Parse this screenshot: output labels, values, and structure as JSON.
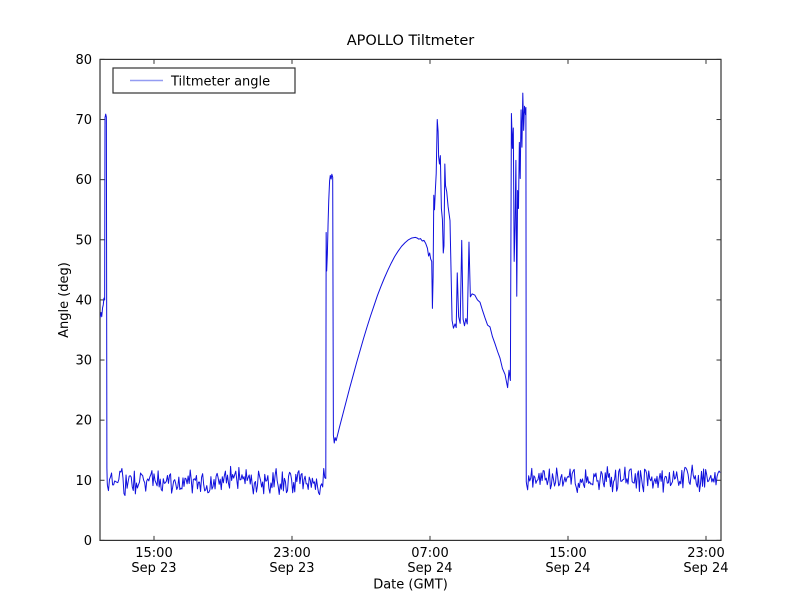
{
  "chart_data": {
    "type": "line",
    "title": "APOLLO Tiltmeter",
    "xlabel": "Date (GMT)",
    "ylabel": "Angle (deg)",
    "grid": false,
    "legend_position": "upper left",
    "ylim": [
      0,
      80
    ],
    "y_ticks": [
      0,
      10,
      20,
      30,
      40,
      50,
      60,
      70,
      80
    ],
    "x_unit": "hours since Sep 23 00:00 GMT",
    "xlim": [
      11.87,
      47.87
    ],
    "x_ticks": [
      {
        "hour": 15,
        "time": "15:00",
        "date": "Sep 23"
      },
      {
        "hour": 23,
        "time": "23:00",
        "date": "Sep 23"
      },
      {
        "hour": 31,
        "time": "07:00",
        "date": "Sep 24"
      },
      {
        "hour": 39,
        "time": "15:00",
        "date": "Sep 24"
      },
      {
        "hour": 47,
        "time": "23:00",
        "date": "Sep 24"
      }
    ],
    "style": {
      "line_color": "#1010dd",
      "legend_swatch_color": "#949cf2",
      "axis_color": "#333333",
      "background": "#ffffff"
    },
    "series": [
      {
        "name": "Tiltmeter angle",
        "color": "#1010dd",
        "segments": [
          {
            "type": "points",
            "label": "initial-spike",
            "pts": [
              [
                11.87,
                37.0
              ],
              [
                11.93,
                37.9
              ],
              [
                11.97,
                37.2
              ],
              [
                12.02,
                38.7
              ],
              [
                12.06,
                39.2
              ],
              [
                12.1,
                40.3
              ],
              [
                12.14,
                40.0
              ],
              [
                12.16,
                70.3
              ],
              [
                12.2,
                70.9
              ],
              [
                12.24,
                70.4
              ],
              [
                12.27,
                12.0
              ],
              [
                12.29,
                9.6
              ]
            ]
          },
          {
            "type": "noise",
            "label": "baseline-1",
            "t0": 12.3,
            "t1": 24.95,
            "dt": 0.06,
            "mean": 9.9,
            "amp": 2.6,
            "seed": 7
          },
          {
            "type": "points",
            "label": "main-event",
            "pts": [
              [
                24.96,
                10.3
              ],
              [
                24.98,
                51.2
              ],
              [
                25.01,
                44.8
              ],
              [
                25.05,
                47.6
              ],
              [
                25.09,
                52.5
              ],
              [
                25.13,
                56.5
              ],
              [
                25.18,
                59.8
              ],
              [
                25.22,
                60.7
              ],
              [
                25.27,
                60.1
              ],
              [
                25.31,
                60.9
              ],
              [
                25.36,
                60.4
              ],
              [
                25.4,
                17.5
              ],
              [
                25.45,
                16.2
              ],
              [
                25.5,
                17.1
              ],
              [
                25.56,
                16.6
              ],
              [
                25.75,
                18.8
              ],
              [
                25.95,
                21.0
              ],
              [
                26.15,
                23.2
              ],
              [
                26.35,
                25.4
              ],
              [
                26.55,
                27.5
              ],
              [
                26.75,
                29.6
              ],
              [
                26.95,
                31.6
              ],
              [
                27.15,
                33.6
              ],
              [
                27.35,
                35.5
              ],
              [
                27.55,
                37.3
              ],
              [
                27.75,
                39.0
              ],
              [
                27.95,
                40.7
              ],
              [
                28.15,
                42.2
              ],
              [
                28.35,
                43.6
              ],
              [
                28.55,
                44.9
              ],
              [
                28.75,
                46.1
              ],
              [
                28.95,
                47.2
              ],
              [
                29.15,
                48.1
              ],
              [
                29.35,
                48.9
              ],
              [
                29.55,
                49.5
              ],
              [
                29.75,
                50.0
              ],
              [
                29.95,
                50.3
              ],
              [
                30.15,
                50.4
              ],
              [
                30.25,
                50.3
              ],
              [
                30.35,
                50.1
              ],
              [
                30.45,
                50.2
              ],
              [
                30.55,
                49.8
              ],
              [
                30.65,
                49.9
              ],
              [
                30.75,
                49.4
              ],
              [
                30.85,
                48.6
              ],
              [
                30.92,
                47.3
              ],
              [
                30.98,
                47.8
              ],
              [
                31.04,
                46.8
              ],
              [
                31.1,
                46.4
              ],
              [
                31.14,
                38.6
              ],
              [
                31.18,
                43.8
              ],
              [
                31.22,
                57.4
              ],
              [
                31.26,
                55.0
              ],
              [
                31.31,
                58.2
              ],
              [
                31.36,
                61.0
              ],
              [
                31.42,
                70.0
              ],
              [
                31.47,
                68.0
              ],
              [
                31.5,
                63.8
              ],
              [
                31.55,
                62.6
              ],
              [
                31.6,
                64.0
              ],
              [
                31.66,
                55.2
              ],
              [
                31.72,
                53.4
              ],
              [
                31.77,
                47.8
              ],
              [
                31.81,
                49.0
              ],
              [
                31.86,
                62.6
              ],
              [
                31.9,
                59.0
              ],
              [
                31.97,
                58.0
              ],
              [
                32.05,
                55.5
              ],
              [
                32.16,
                53.2
              ],
              [
                32.28,
                36.6
              ],
              [
                32.36,
                35.3
              ],
              [
                32.45,
                36.0
              ],
              [
                32.52,
                35.4
              ],
              [
                32.58,
                44.5
              ],
              [
                32.66,
                37.2
              ],
              [
                32.75,
                36.1
              ],
              [
                32.84,
                49.9
              ],
              [
                32.92,
                36.8
              ],
              [
                33.0,
                35.7
              ],
              [
                33.08,
                36.9
              ],
              [
                33.16,
                36.0
              ],
              [
                33.26,
                49.6
              ],
              [
                33.34,
                40.5
              ],
              [
                33.44,
                41.0
              ],
              [
                33.6,
                40.8
              ],
              [
                33.75,
                40.0
              ],
              [
                33.9,
                39.6
              ],
              [
                34.05,
                38.2
              ],
              [
                34.19,
                37.0
              ],
              [
                34.34,
                35.8
              ],
              [
                34.48,
                35.5
              ],
              [
                34.62,
                33.9
              ],
              [
                34.77,
                32.7
              ],
              [
                34.92,
                31.4
              ],
              [
                35.06,
                30.3
              ],
              [
                35.2,
                28.6
              ],
              [
                35.35,
                27.6
              ],
              [
                35.5,
                25.4
              ],
              [
                35.58,
                28.3
              ],
              [
                35.66,
                26.6
              ],
              [
                35.72,
                71.0
              ],
              [
                35.78,
                65.2
              ],
              [
                35.83,
                68.6
              ],
              [
                35.88,
                46.4
              ],
              [
                35.93,
                52.2
              ],
              [
                35.98,
                63.2
              ],
              [
                36.03,
                40.6
              ],
              [
                36.08,
                58.2
              ],
              [
                36.13,
                55.2
              ],
              [
                36.18,
                66.2
              ],
              [
                36.23,
                60.2
              ],
              [
                36.28,
                71.6
              ],
              [
                36.33,
                65.4
              ],
              [
                36.38,
                74.4
              ],
              [
                36.43,
                68.2
              ],
              [
                36.48,
                72.2
              ],
              [
                36.54,
                70.8
              ],
              [
                36.56,
                72.0
              ],
              [
                36.58,
                9.8
              ]
            ]
          },
          {
            "type": "noise",
            "label": "baseline-2",
            "t0": 36.6,
            "t1": 47.87,
            "dt": 0.06,
            "mean": 10.4,
            "amp": 2.6,
            "seed": 21
          }
        ]
      }
    ]
  }
}
